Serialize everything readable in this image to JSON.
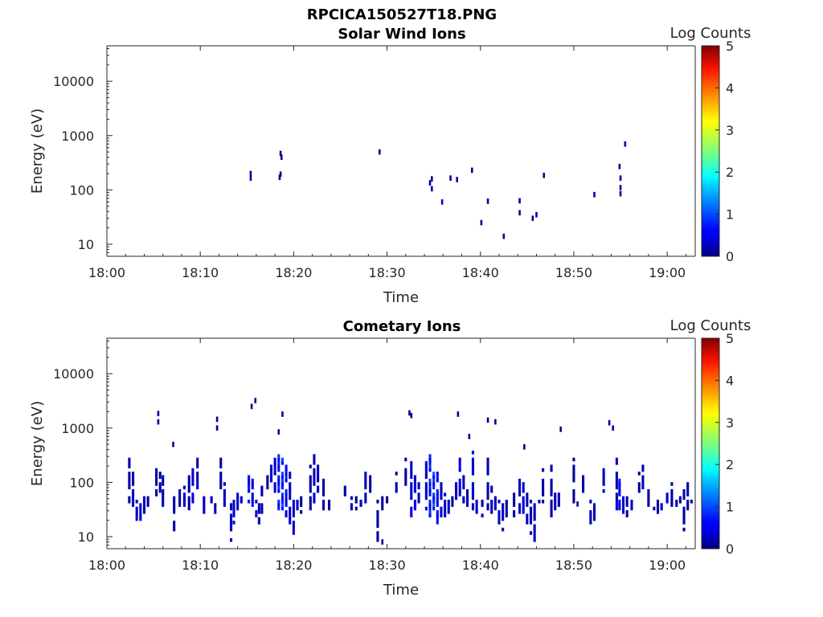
{
  "figure": {
    "title": "RPCICA150527T18.PNG"
  },
  "colorbar": {
    "label": "Log Counts",
    "ticks": [
      "0",
      "1",
      "2",
      "3",
      "4",
      "5"
    ],
    "colormap": "jet",
    "range": [
      0,
      5
    ]
  },
  "chart_data": [
    {
      "type": "heatmap",
      "title": "Solar Wind Ions",
      "xlabel": "Time",
      "ylabel": "Energy (eV)",
      "x_range_minutes": [
        0,
        63
      ],
      "y_range": [
        6,
        45000
      ],
      "y_scale": "log",
      "x_tick_labels": [
        "18:00",
        "18:10",
        "18:20",
        "18:30",
        "18:40",
        "18:50",
        "19:00"
      ],
      "y_tick_labels": [
        "10",
        "100",
        "1000",
        "10000"
      ],
      "points": [
        [
          15.4,
          200,
          0.1
        ],
        [
          15.4,
          165,
          0.1
        ],
        [
          18.6,
          470,
          0.1
        ],
        [
          18.7,
          400,
          0.1
        ],
        [
          18.6,
          195,
          0.1
        ],
        [
          18.5,
          170,
          0.1
        ],
        [
          29.2,
          500,
          0.1
        ],
        [
          34.8,
          160,
          0.1
        ],
        [
          34.6,
          135,
          0.2
        ],
        [
          34.8,
          105,
          0.1
        ],
        [
          36.8,
          165,
          0.1
        ],
        [
          37.5,
          155,
          0.1
        ],
        [
          39.1,
          230,
          0.1
        ],
        [
          40.1,
          25,
          0.2
        ],
        [
          40.8,
          62,
          0.1
        ],
        [
          42.5,
          14,
          0.1
        ],
        [
          44.2,
          63,
          0.2
        ],
        [
          44.2,
          38,
          0.1
        ],
        [
          45.6,
          30,
          0.1
        ],
        [
          46.0,
          35,
          0.1
        ],
        [
          46.8,
          185,
          0.1
        ],
        [
          52.2,
          82,
          0.1
        ],
        [
          54.9,
          270,
          0.1
        ],
        [
          55.0,
          165,
          0.1
        ],
        [
          55.0,
          110,
          0.1
        ],
        [
          55.0,
          85,
          0.1
        ],
        [
          55.5,
          700,
          0.1
        ],
        [
          35.9,
          60,
          0.5
        ]
      ]
    },
    {
      "type": "heatmap",
      "title": "Cometary Ions",
      "xlabel": "Time",
      "ylabel": "Energy (eV)",
      "x_range_minutes": [
        0,
        63
      ],
      "y_range": [
        6,
        45000
      ],
      "y_scale": "log",
      "x_tick_labels": [
        "18:00",
        "18:10",
        "18:20",
        "18:30",
        "18:40",
        "18:50",
        "19:00"
      ],
      "y_tick_labels": [
        "10",
        "100",
        "1000",
        "10000"
      ],
      "columns": [
        [
          2.4,
          40,
          250,
          0.2
        ],
        [
          2.8,
          35,
          150,
          0.3
        ],
        [
          3.2,
          18,
          45,
          0.3
        ],
        [
          3.6,
          18,
          45,
          0.4
        ],
        [
          4.0,
          25,
          50,
          0.3
        ],
        [
          4.4,
          30,
          50,
          0.2
        ],
        [
          5.3,
          50,
          180,
          0.2
        ],
        [
          5.7,
          60,
          140,
          0.2
        ],
        [
          6.0,
          30,
          120,
          0.3
        ],
        [
          7.2,
          12,
          60,
          0.2
        ],
        [
          7.8,
          30,
          70,
          0.3
        ],
        [
          8.3,
          35,
          80,
          0.3
        ],
        [
          8.8,
          30,
          120,
          0.2
        ],
        [
          9.2,
          40,
          200,
          0.4
        ],
        [
          9.7,
          50,
          250,
          0.3
        ],
        [
          10.4,
          20,
          60,
          0.3
        ],
        [
          11.2,
          30,
          50,
          0.2
        ],
        [
          11.6,
          25,
          45,
          0.2
        ],
        [
          12.2,
          50,
          250,
          0.2
        ],
        [
          12.6,
          30,
          90,
          0.3
        ],
        [
          13.3,
          8,
          40,
          0.3
        ],
        [
          13.6,
          15,
          60,
          0.5
        ],
        [
          14.0,
          25,
          80,
          0.4
        ],
        [
          14.4,
          30,
          50,
          0.3
        ],
        [
          15.2,
          40,
          150,
          0.6
        ],
        [
          15.6,
          35,
          110,
          0.5
        ],
        [
          16.0,
          20,
          45,
          0.4
        ],
        [
          16.3,
          15,
          40,
          0.3
        ],
        [
          16.6,
          25,
          80,
          0.2
        ],
        [
          17.2,
          60,
          120,
          0.2
        ],
        [
          17.6,
          80,
          200,
          0.3
        ],
        [
          18.0,
          60,
          300,
          0.5
        ],
        [
          18.4,
          30,
          400,
          0.7
        ],
        [
          18.8,
          25,
          250,
          0.8
        ],
        [
          19.2,
          20,
          200,
          0.6
        ],
        [
          19.6,
          15,
          150,
          0.4
        ],
        [
          20.0,
          10,
          60,
          0.4
        ],
        [
          20.4,
          20,
          45,
          0.3
        ],
        [
          20.8,
          25,
          50,
          0.2
        ],
        [
          21.8,
          30,
          200,
          0.2
        ],
        [
          22.2,
          40,
          300,
          0.3
        ],
        [
          22.6,
          60,
          250,
          0.3
        ],
        [
          23.2,
          30,
          120,
          0.2
        ],
        [
          23.8,
          25,
          45,
          0.2
        ],
        [
          25.5,
          50,
          80,
          0.2
        ],
        [
          26.2,
          30,
          50,
          0.3
        ],
        [
          26.7,
          30,
          50,
          0.2
        ],
        [
          27.2,
          30,
          45,
          0.3
        ],
        [
          27.7,
          40,
          150,
          0.3
        ],
        [
          28.2,
          50,
          120,
          0.2
        ],
        [
          29.0,
          7,
          45,
          0.2
        ],
        [
          29.5,
          30,
          50,
          0.2
        ],
        [
          30.0,
          40,
          60,
          0.2
        ],
        [
          31.0,
          60,
          150,
          0.2
        ],
        [
          32.0,
          80,
          250,
          0.2
        ],
        [
          32.6,
          20,
          250,
          0.4
        ],
        [
          33.0,
          30,
          120,
          0.5
        ],
        [
          33.4,
          40,
          100,
          0.3
        ],
        [
          34.2,
          30,
          250,
          0.4
        ],
        [
          34.6,
          20,
          300,
          0.7
        ],
        [
          35.0,
          25,
          200,
          0.9
        ],
        [
          35.4,
          15,
          150,
          0.6
        ],
        [
          35.8,
          20,
          100,
          0.4
        ],
        [
          36.2,
          15,
          60,
          0.4
        ],
        [
          36.6,
          25,
          45,
          0.3
        ],
        [
          37.0,
          30,
          50,
          0.2
        ],
        [
          37.4,
          35,
          90,
          0.3
        ],
        [
          37.8,
          45,
          250,
          0.5
        ],
        [
          38.2,
          40,
          130,
          0.3
        ],
        [
          38.6,
          25,
          70,
          0.2
        ],
        [
          39.2,
          30,
          350,
          0.4
        ],
        [
          39.6,
          25,
          50,
          0.3
        ],
        [
          40.2,
          20,
          45,
          0.2
        ],
        [
          40.8,
          30,
          250,
          0.3
        ],
        [
          41.2,
          25,
          80,
          0.3
        ],
        [
          41.6,
          20,
          50,
          0.3
        ],
        [
          42.0,
          15,
          45,
          0.4
        ],
        [
          42.4,
          12,
          40,
          0.3
        ],
        [
          42.8,
          20,
          45,
          0.2
        ],
        [
          43.6,
          20,
          60,
          0.2
        ],
        [
          44.2,
          25,
          120,
          0.3
        ],
        [
          44.6,
          20,
          90,
          0.4
        ],
        [
          45.0,
          15,
          60,
          0.3
        ],
        [
          45.4,
          10,
          45,
          0.3
        ],
        [
          45.8,
          7,
          40,
          0.3
        ],
        [
          46.3,
          35,
          45,
          0.2
        ],
        [
          46.7,
          40,
          180,
          0.2
        ],
        [
          47.6,
          20,
          200,
          0.2
        ],
        [
          48.0,
          30,
          70,
          0.3
        ],
        [
          48.4,
          35,
          60,
          0.2
        ],
        [
          50.0,
          40,
          250,
          0.2
        ],
        [
          51.0,
          60,
          120,
          0.2
        ],
        [
          51.8,
          15,
          45,
          0.3
        ],
        [
          52.2,
          15,
          45,
          0.3
        ],
        [
          53.2,
          60,
          160,
          0.3
        ],
        [
          54.6,
          30,
          250,
          0.3
        ],
        [
          54.9,
          30,
          120,
          0.6
        ],
        [
          55.3,
          25,
          60,
          0.4
        ],
        [
          55.7,
          20,
          50,
          0.3
        ],
        [
          56.2,
          30,
          45,
          0.3
        ],
        [
          57.0,
          60,
          150,
          0.2
        ],
        [
          57.4,
          70,
          200,
          0.3
        ],
        [
          58.0,
          35,
          80,
          0.2
        ],
        [
          58.6,
          30,
          45,
          0.3
        ],
        [
          59.0,
          25,
          45,
          0.2
        ],
        [
          59.4,
          20,
          40,
          0.3
        ],
        [
          60.0,
          35,
          60,
          0.5
        ],
        [
          60.5,
          30,
          100,
          0.2
        ],
        [
          61.0,
          35,
          45,
          0.3
        ],
        [
          61.4,
          40,
          50,
          0.2
        ],
        [
          61.8,
          12,
          70,
          0.2
        ],
        [
          62.2,
          30,
          90,
          0.2
        ],
        [
          62.6,
          38,
          45,
          0.2
        ]
      ],
      "points": [
        [
          5.5,
          1850,
          0.1
        ],
        [
          5.5,
          1300,
          0.1
        ],
        [
          7.1,
          500,
          0.1
        ],
        [
          11.8,
          1450,
          0.1
        ],
        [
          11.8,
          1000,
          0.1
        ],
        [
          15.5,
          2500,
          0.1
        ],
        [
          15.9,
          3200,
          0.1
        ],
        [
          18.8,
          1800,
          0.1
        ],
        [
          18.4,
          850,
          0.1
        ],
        [
          29.5,
          8,
          0.1
        ],
        [
          32.4,
          1900,
          0.1
        ],
        [
          32.6,
          1700,
          0.1
        ],
        [
          37.6,
          1800,
          0.1
        ],
        [
          40.8,
          1400,
          0.1
        ],
        [
          41.6,
          1300,
          0.1
        ],
        [
          48.6,
          950,
          0.1
        ],
        [
          53.8,
          1250,
          0.1
        ],
        [
          54.2,
          1000,
          0.1
        ],
        [
          38.8,
          700,
          0.1
        ],
        [
          44.7,
          450,
          0.1
        ],
        [
          50.4,
          40,
          0.1
        ]
      ]
    }
  ]
}
